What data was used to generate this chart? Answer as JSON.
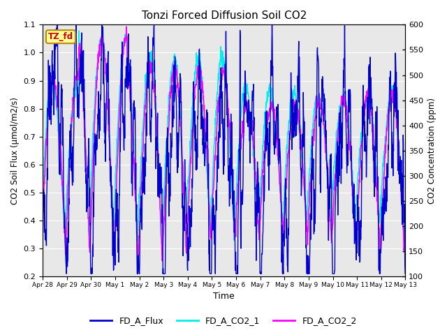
{
  "title": "Tonzi Forced Diffusion Soil CO2",
  "xlabel": "Time",
  "ylabel_left": "CO2 Soil Flux (μmol/m2/s)",
  "ylabel_right": "CO2 Concentration (ppm)",
  "ylim_left": [
    0.2,
    1.1
  ],
  "ylim_right": [
    100,
    600
  ],
  "xtick_labels": [
    "Apr 28",
    "Apr 29",
    "Apr 30",
    "May 1",
    "May 2",
    "May 3",
    "May 4",
    "May 5",
    "May 6",
    "May 7",
    "May 8",
    "May 9",
    "May 10",
    "May 11",
    "May 12",
    "May 13"
  ],
  "color_flux": "#0000CC",
  "color_co2_1": "#00EEEE",
  "color_co2_2": "#FF00FF",
  "legend_labels": [
    "FD_A_Flux",
    "FD_A_CO2_1",
    "FD_A_CO2_2"
  ],
  "tag_text": "TZ_fd",
  "tag_facecolor": "#FFFF99",
  "tag_edgecolor": "#BB8800",
  "tag_textcolor": "#CC0000",
  "background_color": "#DCDCDC",
  "plot_bg_color": "#E8E8E8",
  "grid_color": "#FFFFFF",
  "yticks_left": [
    0.2,
    0.3,
    0.4,
    0.5,
    0.6,
    0.7,
    0.8,
    0.9,
    1.0,
    1.1
  ],
  "yticks_right": [
    100,
    150,
    200,
    250,
    300,
    350,
    400,
    450,
    500,
    550,
    600
  ],
  "flux_lw": 1.0,
  "co2_lw": 1.2
}
